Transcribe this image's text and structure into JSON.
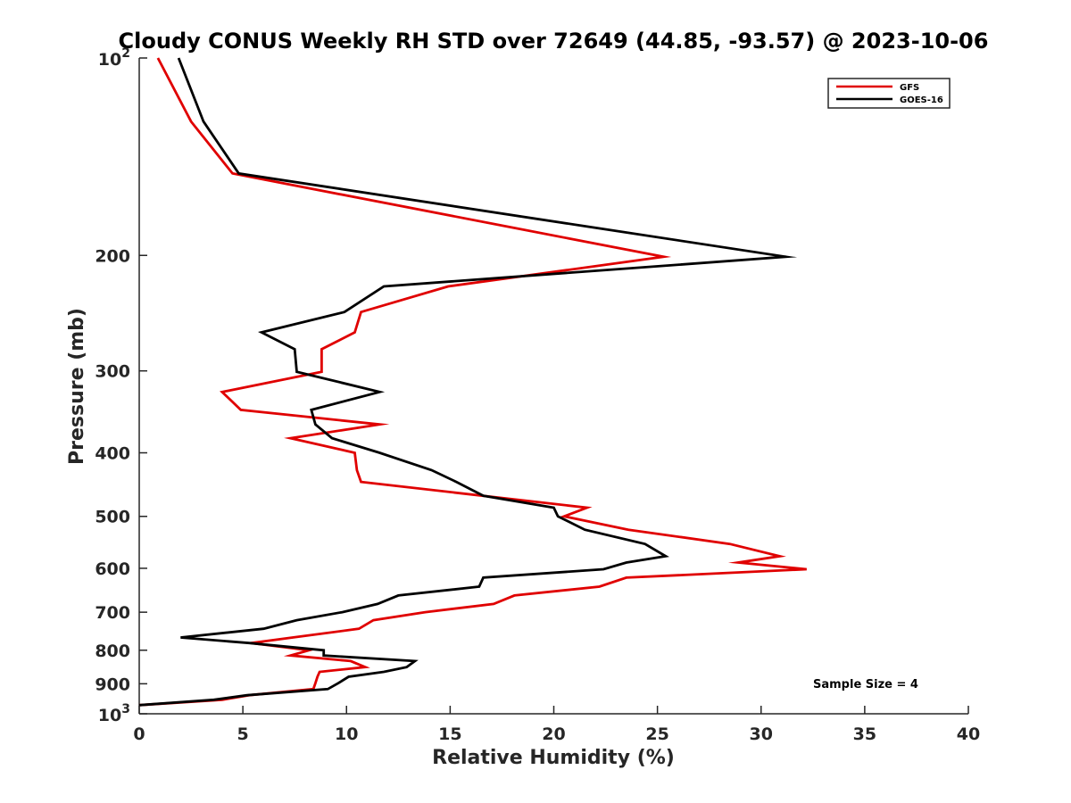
{
  "chart_data": {
    "type": "line",
    "title": "Cloudy CONUS Weekly RH STD over 72649 (44.85, -93.57) @ 2023-10-06",
    "xlabel": "Relative Humidity (%)",
    "ylabel": "Pressure (mb)",
    "xlim": [
      0,
      40
    ],
    "ylim": [
      100,
      1000
    ],
    "y_scale": "log",
    "y_reversed": true,
    "x_ticks": [
      "0",
      "5",
      "10",
      "15",
      "20",
      "25",
      "30",
      "35",
      "40"
    ],
    "y_ticks": [
      {
        "value": 100,
        "base": "10",
        "exp": "2"
      },
      {
        "value": 200,
        "label": "200"
      },
      {
        "value": 300,
        "label": "300"
      },
      {
        "value": 400,
        "label": "400"
      },
      {
        "value": 500,
        "label": "500"
      },
      {
        "value": 600,
        "label": "600"
      },
      {
        "value": 700,
        "label": "700"
      },
      {
        "value": 800,
        "label": "800"
      },
      {
        "value": 900,
        "label": "900"
      },
      {
        "value": 1000,
        "base": "10",
        "exp": "3"
      }
    ],
    "grid": false,
    "legend_position": "top-right",
    "annotation": "Sample Size = 4",
    "series": [
      {
        "name": "GFS",
        "color": "#e00000",
        "points": [
          [
            0.9,
            100
          ],
          [
            2.5,
            125
          ],
          [
            4.5,
            150
          ],
          [
            25.3,
            201
          ],
          [
            14.9,
            223
          ],
          [
            10.7,
            244
          ],
          [
            10.4,
            262
          ],
          [
            8.8,
            278
          ],
          [
            8.8,
            301
          ],
          [
            4.0,
            323
          ],
          [
            4.9,
            344
          ],
          [
            11.6,
            362
          ],
          [
            7.3,
            380
          ],
          [
            10.4,
            400
          ],
          [
            10.5,
            425
          ],
          [
            10.7,
            443
          ],
          [
            21.6,
            485
          ],
          [
            20.5,
            500
          ],
          [
            23.6,
            524
          ],
          [
            28.5,
            551
          ],
          [
            30.9,
            575
          ],
          [
            28.9,
            588
          ],
          [
            32.2,
            602
          ],
          [
            23.5,
            620
          ],
          [
            22.2,
            640
          ],
          [
            18.1,
            660
          ],
          [
            17.1,
            680
          ],
          [
            13.8,
            700
          ],
          [
            11.3,
            720
          ],
          [
            10.6,
            742
          ],
          [
            7.4,
            765
          ],
          [
            5.4,
            780
          ],
          [
            8.2,
            800
          ],
          [
            7.3,
            815
          ],
          [
            10.2,
            831
          ],
          [
            10.9,
            849
          ],
          [
            8.7,
            863
          ],
          [
            8.6,
            878
          ],
          [
            8.5,
            898
          ],
          [
            8.4,
            917
          ],
          [
            5.3,
            937
          ],
          [
            4.0,
            952
          ],
          [
            0.0,
            970
          ]
        ]
      },
      {
        "name": "GOES-16",
        "color": "#000000",
        "points": [
          [
            1.9,
            100
          ],
          [
            3.1,
            125
          ],
          [
            4.8,
            150
          ],
          [
            31.2,
            201
          ],
          [
            11.8,
            223
          ],
          [
            9.9,
            244
          ],
          [
            5.9,
            262
          ],
          [
            7.5,
            278
          ],
          [
            7.6,
            301
          ],
          [
            11.6,
            323
          ],
          [
            8.3,
            344
          ],
          [
            8.5,
            362
          ],
          [
            9.3,
            380
          ],
          [
            11.6,
            400
          ],
          [
            14.1,
            425
          ],
          [
            15.3,
            443
          ],
          [
            16.6,
            465
          ],
          [
            20.0,
            485
          ],
          [
            20.2,
            500
          ],
          [
            21.5,
            524
          ],
          [
            24.4,
            551
          ],
          [
            25.4,
            575
          ],
          [
            23.5,
            588
          ],
          [
            22.4,
            602
          ],
          [
            16.6,
            620
          ],
          [
            16.4,
            640
          ],
          [
            12.5,
            660
          ],
          [
            11.5,
            680
          ],
          [
            9.8,
            700
          ],
          [
            7.6,
            720
          ],
          [
            6.0,
            742
          ],
          [
            2.0,
            765
          ],
          [
            5.3,
            780
          ],
          [
            8.9,
            800
          ],
          [
            8.9,
            815
          ],
          [
            13.3,
            831
          ],
          [
            12.9,
            849
          ],
          [
            11.8,
            863
          ],
          [
            10.1,
            878
          ],
          [
            9.6,
            898
          ],
          [
            9.1,
            917
          ],
          [
            5.2,
            937
          ],
          [
            3.6,
            952
          ],
          [
            0.0,
            970
          ]
        ]
      }
    ]
  }
}
